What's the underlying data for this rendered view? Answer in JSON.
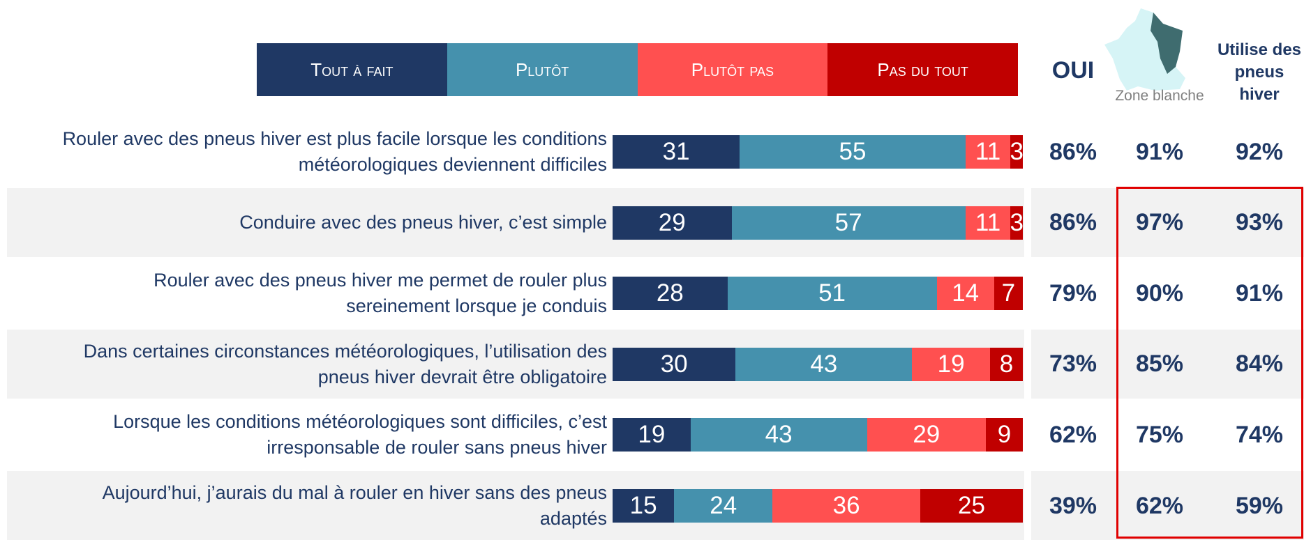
{
  "chart_data": {
    "type": "bar",
    "orientation": "horizontal",
    "stacked": true,
    "categories": [
      "Rouler avec des pneus hiver est plus facile lorsque les conditions\nmétéorologiques deviennent difficiles",
      "Conduire avec des pneus hiver, c’est simple",
      "Rouler avec des pneus hiver me permet de rouler plus\nsereinement lorsque je conduis",
      "Dans certaines circonstances météorologiques, l’utilisation des\npneus hiver devrait être obligatoire",
      "Lorsque les conditions météorologiques sont difficiles, c’est\nirresponsable de rouler sans pneus hiver",
      "Aujourd’hui, j’aurais du mal à rouler en hiver sans des pneus\nadaptés"
    ],
    "series": [
      {
        "name": "Tout à fait",
        "color": "#1f3864",
        "values": [
          31,
          29,
          28,
          30,
          19,
          15
        ]
      },
      {
        "name": "Plutôt",
        "color": "#4591ad",
        "values": [
          55,
          57,
          51,
          43,
          43,
          24
        ]
      },
      {
        "name": "Plutôt pas",
        "color": "#ff5050",
        "values": [
          11,
          11,
          14,
          19,
          29,
          36
        ]
      },
      {
        "name": "Pas du tout",
        "color": "#c00000",
        "values": [
          3,
          3,
          7,
          8,
          9,
          25
        ]
      }
    ],
    "xlim": [
      0,
      100
    ],
    "columns": [
      {
        "name": "OUI",
        "values": [
          86,
          86,
          79,
          73,
          62,
          39
        ],
        "value_labels": [
          "86%",
          "86%",
          "79%",
          "73%",
          "62%",
          "39%"
        ]
      },
      {
        "name": "Zone blanche",
        "values": [
          91,
          97,
          90,
          85,
          75,
          62
        ],
        "value_labels": [
          "91%",
          "97%",
          "90%",
          "85%",
          "75%",
          "62%"
        ]
      },
      {
        "name": "Utilise des\npneus\nhiver",
        "values": [
          92,
          93,
          91,
          84,
          74,
          59
        ],
        "value_labels": [
          "92%",
          "93%",
          "91%",
          "84%",
          "74%",
          "59%"
        ]
      }
    ]
  }
}
